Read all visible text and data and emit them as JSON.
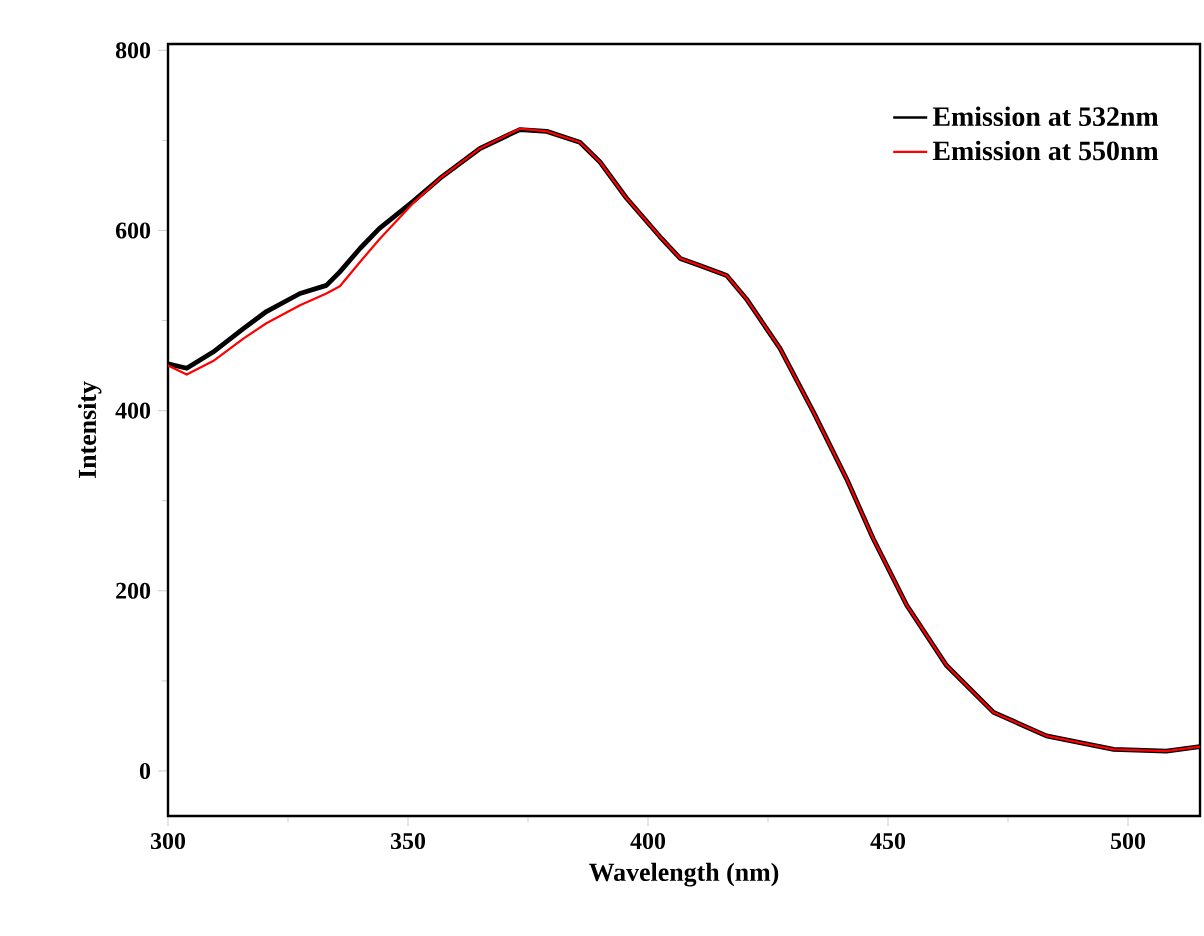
{
  "chart_data": {
    "type": "line",
    "xlabel": "Wavelength (nm)",
    "ylabel": "Intensity",
    "xlim": [
      300,
      515
    ],
    "ylim": [
      -50,
      807
    ],
    "xticks": [
      300,
      350,
      400,
      450,
      500
    ],
    "yticks": [
      0,
      200,
      400,
      600,
      800
    ],
    "legend": "top right",
    "line_style": "solid",
    "series": [
      {
        "name": "Emission at 532nm",
        "color": "#000000",
        "x": [
          300,
          303.9,
          309.4,
          315.7,
          320.5,
          327.5,
          333,
          335.8,
          340,
          344,
          351,
          356.7,
          365,
          373.3,
          378.9,
          385.8,
          390,
          395.5,
          402.5,
          406.7,
          410.8,
          416.4,
          420.5,
          427.5,
          434.5,
          441.4,
          446.9,
          453.9,
          462.2,
          472,
          483,
          497,
          508,
          515
        ],
        "values": [
          452,
          447,
          465,
          491,
          510,
          530,
          539,
          554,
          580,
          602,
          632,
          658,
          691,
          712,
          710,
          698,
          676,
          636,
          593,
          569,
          561,
          550,
          524,
          469,
          398,
          324,
          258,
          184,
          117,
          65,
          39,
          24,
          22,
          27
        ]
      },
      {
        "name": "Emission at 550nm",
        "color": "#ff0000",
        "x": [
          300,
          303.9,
          309.4,
          315.7,
          320.5,
          327.5,
          333,
          335.8,
          340,
          344,
          351,
          356.7,
          365,
          373.3,
          378.9,
          385.8,
          390,
          395.5,
          402.5,
          406.7,
          410.8,
          416.4,
          420.5,
          427.5,
          434.5,
          441.4,
          446.9,
          453.9,
          462.2,
          472,
          483,
          497,
          508,
          515
        ],
        "values": [
          450,
          440,
          455,
          480,
          497,
          517,
          530,
          538,
          565,
          590,
          630,
          658,
          691,
          713,
          710,
          698,
          676,
          636,
          593,
          569,
          561,
          550,
          524,
          469,
          398,
          324,
          258,
          184,
          117,
          65,
          39,
          24,
          22,
          27
        ]
      }
    ]
  }
}
